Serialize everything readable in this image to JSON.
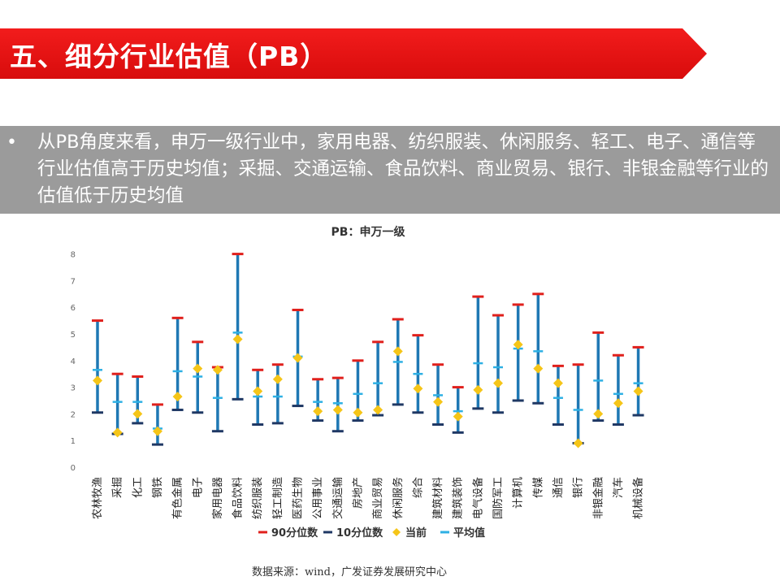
{
  "header": {
    "title": "五、细分行业估值（PB）"
  },
  "bullet": {
    "symbol": "•",
    "text": "从PB角度来看，申万一级行业中，家用电器、纺织服装、休闲服务、轻工、电子、通信等行业估值高于历史均值；采掘、交通运输、食品饮料、商业贸易、银行、非银金融等行业的估值低于历史均值"
  },
  "footer": {
    "source": "数据来源：wind，广发证券发展研究中心"
  },
  "colors": {
    "title_bar": "#e81010",
    "bullet_bg": "#9b9b9b",
    "p90": "#e0201c",
    "p10": "#1f3864",
    "current": "#f5c518",
    "mean": "#2eb0e4",
    "range_line": "#1f78b4"
  },
  "chart_data": {
    "type": "range",
    "title": "PB：申万一级",
    "ylim": [
      0,
      8
    ],
    "yticks": [
      "0",
      "1",
      "2",
      "3",
      "4",
      "5",
      "6",
      "7",
      "8"
    ],
    "grid": false,
    "legend_position": "bottom",
    "categories": [
      "农林牧渔",
      "采掘",
      "化工",
      "钢铁",
      "有色金属",
      "电子",
      "家用电器",
      "食品饮料",
      "纺织服装",
      "轻工制造",
      "医药生物",
      "公用事业",
      "交通运输",
      "房地产",
      "商业贸易",
      "休闲服务",
      "综合",
      "建筑材料",
      "建筑装饰",
      "电气设备",
      "国防军工",
      "计算机",
      "传媒",
      "通信",
      "银行",
      "非银金融",
      "汽车",
      "机械设备"
    ],
    "series": [
      {
        "name": "90分位数",
        "values": [
          5.5,
          3.5,
          3.4,
          2.35,
          5.6,
          4.7,
          3.75,
          8.0,
          3.65,
          3.85,
          5.9,
          3.3,
          3.35,
          4.0,
          4.7,
          5.55,
          4.95,
          3.85,
          3.0,
          6.4,
          5.7,
          6.1,
          6.5,
          3.8,
          3.85,
          5.05,
          4.2,
          4.5
        ]
      },
      {
        "name": "10分位数",
        "values": [
          2.05,
          1.25,
          1.65,
          0.85,
          2.15,
          2.05,
          1.35,
          2.55,
          1.6,
          1.65,
          2.3,
          1.75,
          1.35,
          1.75,
          1.95,
          2.35,
          2.05,
          1.6,
          1.3,
          2.2,
          2.05,
          2.5,
          2.4,
          1.6,
          0.9,
          1.75,
          1.6,
          1.95
        ]
      },
      {
        "name": "当前",
        "values": [
          3.25,
          1.3,
          2.0,
          1.35,
          2.65,
          3.7,
          3.65,
          4.8,
          2.85,
          3.3,
          4.1,
          2.1,
          2.15,
          2.05,
          2.15,
          4.35,
          2.95,
          2.45,
          1.9,
          2.9,
          3.15,
          4.6,
          3.7,
          3.15,
          0.9,
          2.0,
          2.4,
          2.85
        ]
      },
      {
        "name": "平均值",
        "values": [
          3.65,
          2.45,
          2.45,
          1.45,
          3.6,
          3.4,
          2.6,
          5.05,
          2.65,
          2.65,
          4.15,
          2.45,
          2.4,
          2.75,
          3.15,
          3.95,
          3.5,
          2.7,
          2.1,
          3.9,
          3.75,
          4.45,
          4.35,
          2.6,
          2.15,
          3.25,
          2.75,
          3.15
        ]
      }
    ]
  }
}
